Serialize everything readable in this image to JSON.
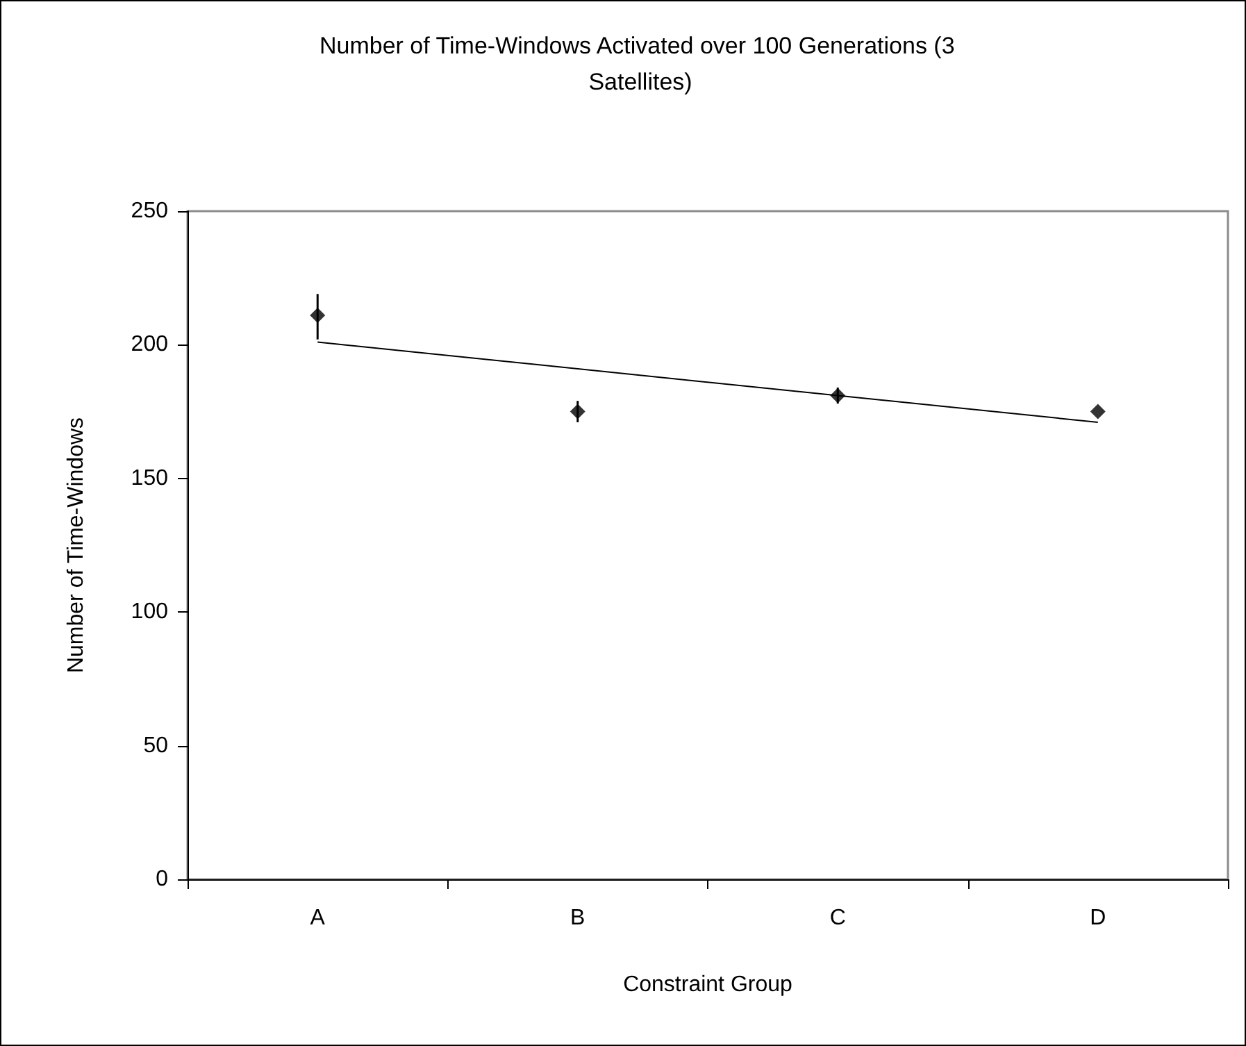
{
  "chart_data": {
    "type": "scatter",
    "title": "Number of Time-Windows Activated over 100 Generations (3 Satellites)",
    "xlabel": "Constraint Group",
    "ylabel": "Number of Time-Windows",
    "categories": [
      "A",
      "B",
      "C",
      "D"
    ],
    "ylim": [
      0,
      250
    ],
    "yticks": [
      0,
      50,
      100,
      150,
      200,
      250
    ],
    "grid": false,
    "marker": "diamond",
    "series": [
      {
        "color": "#000000",
        "values": [
          211,
          175,
          181,
          175
        ],
        "errors": [
          [
            202,
            219
          ],
          4,
          3,
          null
        ]
      },
      {
        "type": "line",
        "color": "#000000",
        "x": [
          "A",
          "D"
        ],
        "values": [
          201,
          171
        ],
        "marker": "none",
        "line_style": "solid"
      }
    ]
  }
}
